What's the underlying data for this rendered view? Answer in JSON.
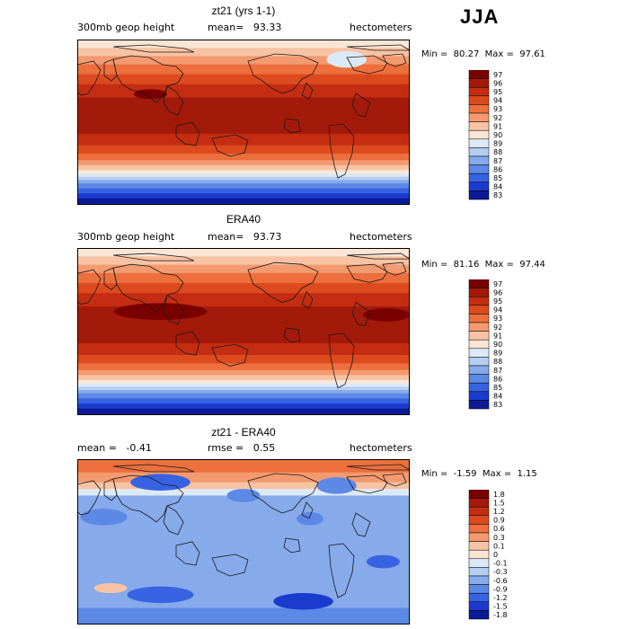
{
  "season": "JJA",
  "panels": [
    {
      "title": "zt21 (yrs 1-1)",
      "field": "300mb geop height",
      "stat_label": "mean=",
      "stat_value": "93.33",
      "units": "hectometers",
      "min_label": "Min =",
      "min_value": "80.27",
      "max_label": "Max =",
      "max_value": "97.61",
      "levels": [
        "97",
        "96",
        "95",
        "94",
        "93",
        "92",
        "91",
        "90",
        "89",
        "88",
        "87",
        "86",
        "85",
        "84",
        "83"
      ]
    },
    {
      "title": "ERA40",
      "field": "300mb geop height",
      "stat_label": "mean=",
      "stat_value": "93.73",
      "units": "hectometers",
      "min_label": "Min =",
      "min_value": "81.16",
      "max_label": "Max =",
      "max_value": "97.44",
      "levels": [
        "97",
        "96",
        "95",
        "94",
        "93",
        "92",
        "91",
        "90",
        "89",
        "88",
        "87",
        "86",
        "85",
        "84",
        "83"
      ]
    },
    {
      "title": "zt21 - ERA40",
      "field": "mean =",
      "field_value": "-0.41",
      "stat_label": "rmse =",
      "stat_value": "0.55",
      "units": "hectometers",
      "min_label": "Min =",
      "min_value": "-1.59",
      "max_label": "Max =",
      "max_value": "1.15",
      "levels": [
        "1.8",
        "1.5",
        "1.2",
        "0.9",
        "0.6",
        "0.3",
        "0.1",
        "0",
        "-0.1",
        "-0.3",
        "-0.6",
        "-0.9",
        "-1.2",
        "-1.5",
        "-1.8"
      ]
    }
  ],
  "colors": {
    "scale": [
      "#7a0000",
      "#a31a0b",
      "#c42d12",
      "#dc4a1d",
      "#ec6f3d",
      "#f49a70",
      "#f8c3a4",
      "#fbe6d6",
      "#dceaf8",
      "#b4cdf1",
      "#86aaea",
      "#5c88e6",
      "#3763e2",
      "#1b3bcf",
      "#0b1a95"
    ],
    "land_outline": "#1a1a1a"
  }
}
